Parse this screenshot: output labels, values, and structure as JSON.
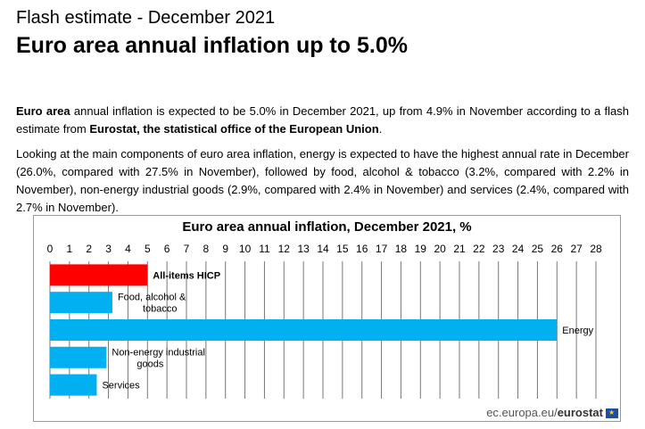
{
  "header": {
    "kicker": "Flash estimate - December 2021",
    "headline": "Euro area annual inflation up to 5.0%"
  },
  "body": {
    "p1": {
      "lead": "Euro area",
      "text1": " annual inflation is expected to be 5.0% in December 2021, up from 4.9% in November according to a flash estimate from ",
      "source": "Eurostat, the statistical office of the European Union",
      "text2": "."
    },
    "p2": "Looking at the main components of euro area inflation, energy is expected to have the highest annual rate in December (26.0%, compared with 27.5% in November), followed by food, alcohol & tobacco (3.2%, compared with 2.2% in November), non-energy industrial goods (2.9%, compared with 2.4% in November) and services (2.4%, compared with 2.7% in November)."
  },
  "chart_data": {
    "type": "bar",
    "orientation": "horizontal",
    "title": "Euro area annual inflation, December 2021, %",
    "xlim": [
      0,
      28
    ],
    "x_ticks": [
      "0",
      "1",
      "2",
      "3",
      "4",
      "5",
      "6",
      "7",
      "8",
      "9",
      "10",
      "11",
      "12",
      "13",
      "14",
      "15",
      "16",
      "17",
      "18",
      "19",
      "20",
      "21",
      "22",
      "23",
      "24",
      "25",
      "26",
      "27",
      "28"
    ],
    "grid": true,
    "categories": [
      {
        "lines": [
          "All-items HICP"
        ],
        "bold": true
      },
      {
        "lines": [
          "Food, alcohol &",
          "tobacco"
        ],
        "bold": false
      },
      {
        "lines": [
          "Energy"
        ],
        "bold": false
      },
      {
        "lines": [
          "Non-energy industrial",
          "goods"
        ],
        "bold": false
      },
      {
        "lines": [
          "Services"
        ],
        "bold": false
      }
    ],
    "values": [
      5.0,
      3.2,
      26.0,
      2.9,
      2.4
    ],
    "colors": [
      "#ff0000",
      "#00b0f0",
      "#00b0f0",
      "#00b0f0",
      "#00b0f0"
    ]
  },
  "footer": {
    "site": "ec.europa.eu/",
    "brand": "eurostat"
  }
}
